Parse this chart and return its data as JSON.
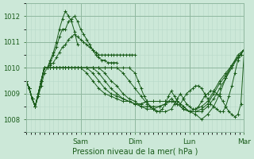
{
  "xlabel": "Pression niveau de la mer( hPa )",
  "bg_color": "#cce8d8",
  "plot_bg_color": "#cce8d8",
  "grid_color_minor": "#b8d8c8",
  "grid_color_major": "#90b8a0",
  "line_color": "#1a5c1a",
  "ylim": [
    1007.5,
    1012.5
  ],
  "yticks": [
    1008,
    1009,
    1010,
    1011,
    1012
  ],
  "day_labels": [
    "Sam",
    "Dim",
    "Lun",
    "Mar"
  ],
  "day_positions": [
    72,
    144,
    216,
    288
  ],
  "xlim": [
    0,
    288
  ],
  "series": [
    {
      "x": [
        0,
        4,
        8,
        12,
        16,
        20,
        24,
        28,
        32,
        36,
        40,
        44,
        48,
        52,
        56,
        60,
        64,
        68
      ],
      "y": [
        1009.5,
        1009.2,
        1008.8,
        1008.5,
        1008.9,
        1009.3,
        1009.8,
        1010.0,
        1010.3,
        1010.6,
        1011.0,
        1011.5,
        1011.9,
        1012.2,
        1012.0,
        1011.8,
        1011.4,
        1010.9
      ]
    },
    {
      "x": [
        0,
        4,
        8,
        12,
        16,
        20,
        24,
        28,
        32,
        36,
        40,
        44,
        48,
        52,
        56,
        60,
        64,
        68,
        72,
        76,
        80,
        84,
        88,
        92,
        96,
        100,
        104,
        108,
        112,
        116,
        120
      ],
      "y": [
        1009.5,
        1009.2,
        1008.8,
        1008.5,
        1009.0,
        1009.5,
        1010.0,
        1010.0,
        1010.2,
        1010.5,
        1010.8,
        1011.2,
        1011.5,
        1011.5,
        1011.8,
        1011.9,
        1012.0,
        1011.8,
        1011.5,
        1011.3,
        1011.1,
        1010.9,
        1010.7,
        1010.5,
        1010.4,
        1010.3,
        1010.3,
        1010.2,
        1010.2,
        1010.2,
        1010.2
      ]
    },
    {
      "x": [
        0,
        4,
        8,
        12,
        16,
        20,
        24,
        28,
        32,
        36,
        40,
        44,
        48,
        52,
        56,
        60,
        64,
        68,
        72,
        76,
        80,
        84,
        88,
        92,
        96,
        100,
        104,
        108,
        112,
        116,
        120,
        124,
        128,
        132,
        136,
        140,
        144
      ],
      "y": [
        1009.5,
        1009.2,
        1008.8,
        1008.5,
        1009.0,
        1009.5,
        1010.0,
        1010.0,
        1010.1,
        1010.2,
        1010.4,
        1010.6,
        1010.8,
        1010.9,
        1011.1,
        1011.2,
        1011.3,
        1011.2,
        1011.1,
        1011.0,
        1010.9,
        1010.8,
        1010.7,
        1010.6,
        1010.5,
        1010.5,
        1010.5,
        1010.5,
        1010.5,
        1010.5,
        1010.5,
        1010.5,
        1010.5,
        1010.5,
        1010.5,
        1010.5,
        1010.5
      ]
    },
    {
      "x": [
        0,
        4,
        8,
        12,
        16,
        20,
        24,
        28,
        32,
        36,
        40,
        44,
        48,
        52,
        56,
        60,
        64,
        68,
        72,
        80,
        88,
        96,
        104,
        112,
        120,
        128,
        136,
        144,
        148,
        152,
        156,
        160,
        164,
        168,
        172,
        176,
        180,
        184,
        188,
        192,
        196,
        200,
        204,
        208,
        212,
        216,
        220,
        224,
        228,
        232,
        236,
        240,
        244,
        248,
        252,
        256,
        260,
        264,
        268,
        272,
        276,
        280,
        284,
        288
      ],
      "y": [
        1009.5,
        1009.2,
        1008.8,
        1008.5,
        1009.0,
        1009.5,
        1010.0,
        1010.0,
        1010.0,
        1010.0,
        1010.0,
        1010.0,
        1010.0,
        1010.0,
        1010.0,
        1010.0,
        1010.0,
        1010.0,
        1010.0,
        1010.0,
        1010.0,
        1010.0,
        1010.0,
        1010.0,
        1010.0,
        1010.0,
        1010.0,
        1009.8,
        1009.5,
        1009.2,
        1008.9,
        1008.7,
        1008.5,
        1008.4,
        1008.3,
        1008.3,
        1008.4,
        1008.6,
        1008.9,
        1009.1,
        1008.9,
        1008.7,
        1008.6,
        1008.8,
        1009.0,
        1009.1,
        1009.2,
        1009.3,
        1009.3,
        1009.2,
        1009.0,
        1008.8,
        1008.6,
        1008.5,
        1008.4,
        1008.3,
        1008.3,
        1008.5,
        1008.9,
        1009.3,
        1009.8,
        1010.3,
        1010.5,
        1010.7
      ]
    },
    {
      "x": [
        0,
        4,
        8,
        12,
        16,
        20,
        24,
        28,
        32,
        36,
        40,
        44,
        48,
        52,
        56,
        60,
        64,
        68,
        72,
        80,
        88,
        96,
        104,
        112,
        120,
        128,
        136,
        144,
        152,
        160,
        168,
        176,
        184,
        192,
        196,
        200,
        204,
        208,
        212,
        216,
        220,
        224,
        228,
        232,
        236,
        240,
        244,
        248,
        252,
        256,
        260,
        264,
        268,
        272,
        276,
        280,
        284,
        288
      ],
      "y": [
        1009.5,
        1009.2,
        1008.8,
        1008.5,
        1009.0,
        1009.5,
        1010.0,
        1010.0,
        1010.0,
        1010.0,
        1010.0,
        1010.0,
        1010.0,
        1010.0,
        1010.0,
        1010.0,
        1010.0,
        1010.0,
        1010.0,
        1010.0,
        1010.0,
        1010.0,
        1010.0,
        1010.0,
        1010.0,
        1009.8,
        1009.5,
        1009.2,
        1008.9,
        1008.6,
        1008.4,
        1008.3,
        1008.3,
        1008.4,
        1008.6,
        1008.8,
        1009.0,
        1008.8,
        1008.6,
        1008.5,
        1008.4,
        1008.4,
        1008.5,
        1008.7,
        1008.9,
        1009.0,
        1009.1,
        1009.1,
        1009.0,
        1008.9,
        1008.7,
        1008.5,
        1008.3,
        1008.2,
        1008.1,
        1008.2,
        1008.6,
        1010.5
      ]
    },
    {
      "x": [
        0,
        4,
        8,
        12,
        16,
        20,
        24,
        28,
        32,
        36,
        40,
        44,
        48,
        52,
        56,
        60,
        64,
        68,
        72,
        80,
        88,
        96,
        104,
        112,
        120,
        128,
        136,
        144,
        152,
        160,
        168,
        176,
        184,
        192,
        200,
        208,
        216,
        224,
        232,
        240,
        248,
        256,
        264,
        272,
        280,
        288
      ],
      "y": [
        1009.5,
        1009.2,
        1008.8,
        1008.5,
        1009.0,
        1009.5,
        1010.0,
        1010.0,
        1010.0,
        1010.0,
        1010.0,
        1010.0,
        1010.0,
        1010.0,
        1010.0,
        1010.0,
        1010.0,
        1010.0,
        1010.0,
        1010.0,
        1010.0,
        1010.0,
        1009.8,
        1009.5,
        1009.3,
        1009.0,
        1008.8,
        1008.7,
        1008.5,
        1008.4,
        1008.4,
        1008.5,
        1008.6,
        1008.8,
        1008.6,
        1008.4,
        1008.3,
        1008.2,
        1008.0,
        1008.2,
        1008.5,
        1009.0,
        1009.6,
        1010.1,
        1010.5,
        1010.7
      ]
    },
    {
      "x": [
        0,
        4,
        8,
        12,
        16,
        20,
        24,
        28,
        32,
        36,
        40,
        44,
        48,
        52,
        56,
        60,
        64,
        68,
        72,
        80,
        88,
        96,
        104,
        112,
        120,
        128,
        136,
        144,
        152,
        160,
        168,
        176,
        184,
        192,
        200,
        208,
        216,
        224,
        232,
        240,
        248,
        256,
        264,
        272,
        280,
        288
      ],
      "y": [
        1009.5,
        1009.2,
        1008.8,
        1008.5,
        1009.0,
        1009.5,
        1010.0,
        1010.0,
        1010.0,
        1010.0,
        1010.0,
        1010.0,
        1010.0,
        1010.0,
        1010.0,
        1010.0,
        1010.0,
        1010.0,
        1010.0,
        1010.0,
        1010.0,
        1009.8,
        1009.5,
        1009.2,
        1009.0,
        1008.8,
        1008.7,
        1008.6,
        1008.5,
        1008.5,
        1008.5,
        1008.5,
        1008.6,
        1008.7,
        1008.6,
        1008.4,
        1008.3,
        1008.3,
        1008.3,
        1008.5,
        1008.8,
        1009.2,
        1009.6,
        1010.0,
        1010.4,
        1010.7
      ]
    },
    {
      "x": [
        0,
        4,
        8,
        12,
        16,
        20,
        24,
        28,
        32,
        36,
        40,
        44,
        48,
        52,
        56,
        60,
        64,
        68,
        72,
        80,
        88,
        96,
        104,
        112,
        120,
        128,
        136,
        144,
        152,
        160,
        168,
        176,
        184,
        192,
        200,
        208,
        216,
        224,
        232,
        240,
        248,
        256,
        264,
        272,
        280,
        288
      ],
      "y": [
        1009.5,
        1009.2,
        1008.8,
        1008.5,
        1009.0,
        1009.5,
        1010.0,
        1010.0,
        1010.0,
        1010.0,
        1010.0,
        1010.0,
        1010.0,
        1010.0,
        1010.0,
        1010.0,
        1010.0,
        1010.0,
        1010.0,
        1010.0,
        1009.8,
        1009.5,
        1009.2,
        1009.0,
        1008.9,
        1008.8,
        1008.7,
        1008.6,
        1008.6,
        1008.7,
        1008.7,
        1008.7,
        1008.7,
        1008.7,
        1008.7,
        1008.5,
        1008.3,
        1008.3,
        1008.4,
        1008.6,
        1009.0,
        1009.4,
        1009.7,
        1010.1,
        1010.4,
        1010.7
      ]
    },
    {
      "x": [
        0,
        4,
        8,
        12,
        16,
        20,
        24,
        28,
        32,
        36,
        40,
        44,
        48,
        52,
        56,
        60,
        64,
        68,
        72,
        80,
        88,
        96,
        104,
        112,
        120,
        128,
        136,
        144,
        152,
        160,
        168,
        176,
        184,
        192,
        200,
        208,
        216,
        224,
        232,
        240,
        248,
        256,
        264,
        272,
        280,
        288
      ],
      "y": [
        1009.5,
        1009.2,
        1008.8,
        1008.5,
        1009.0,
        1009.5,
        1010.0,
        1010.0,
        1010.0,
        1010.0,
        1010.0,
        1010.0,
        1010.0,
        1010.0,
        1010.0,
        1010.0,
        1010.0,
        1010.0,
        1010.0,
        1009.8,
        1009.5,
        1009.2,
        1009.0,
        1008.9,
        1008.8,
        1008.7,
        1008.7,
        1008.6,
        1008.6,
        1008.7,
        1008.7,
        1008.7,
        1008.7,
        1008.7,
        1008.7,
        1008.5,
        1008.3,
        1008.4,
        1008.5,
        1008.7,
        1009.1,
        1009.5,
        1009.8,
        1010.1,
        1010.4,
        1010.7
      ]
    }
  ]
}
